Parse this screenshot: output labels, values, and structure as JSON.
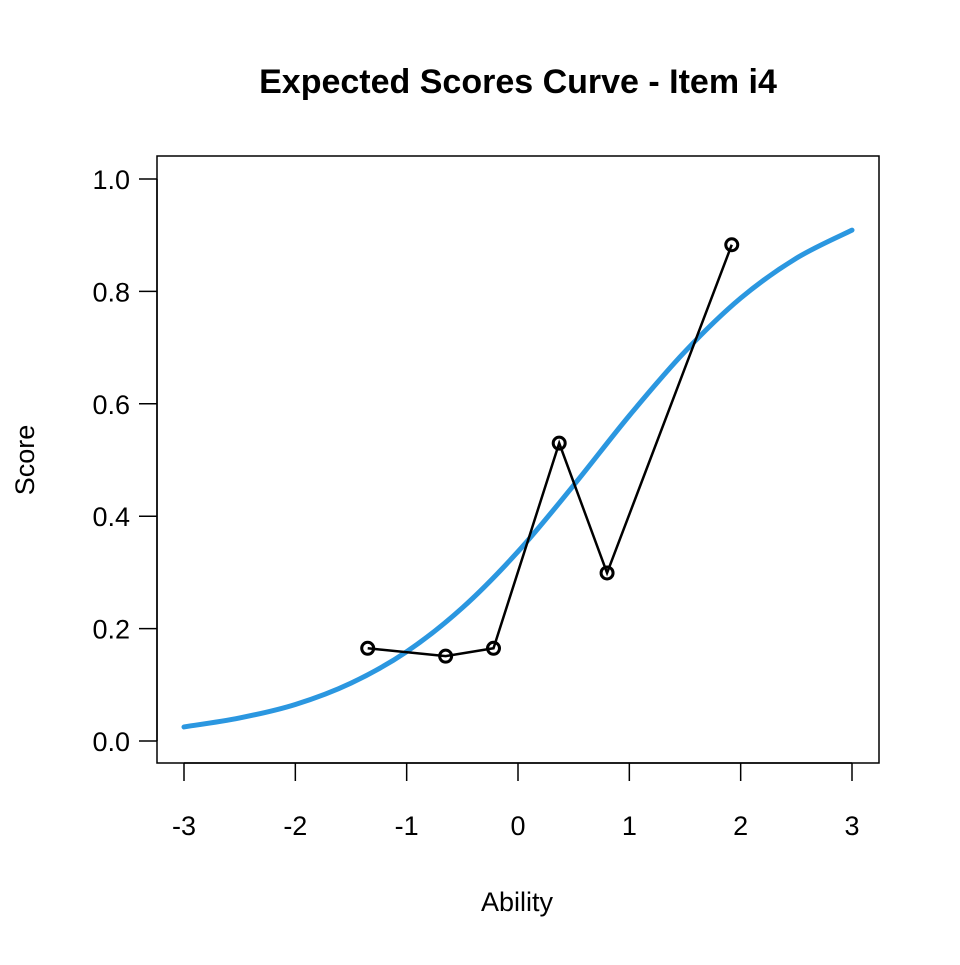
{
  "chart_data": {
    "type": "line",
    "title": "Expected Scores Curve - Item  i4",
    "xlabel": "Ability",
    "ylabel": "Score",
    "xlim": [
      -3,
      3
    ],
    "ylim": [
      0,
      1
    ],
    "x_ticks": [
      "-3",
      "-2",
      "-1",
      "0",
      "1",
      "2",
      "3"
    ],
    "y_ticks": [
      "0.0",
      "0.2",
      "0.4",
      "0.6",
      "0.8",
      "1.0"
    ],
    "grid": false,
    "series": [
      {
        "kind": "expected-curve",
        "color": "#2b97e0",
        "x": [
          -3,
          -2.5,
          -2,
          -1.5,
          -1,
          -0.5,
          0,
          0.5,
          1,
          1.5,
          2,
          2.5,
          3
        ],
        "y": [
          0.025,
          0.041,
          0.065,
          0.103,
          0.159,
          0.237,
          0.337,
          0.455,
          0.579,
          0.693,
          0.788,
          0.859,
          0.909
        ]
      },
      {
        "kind": "observed-points",
        "color": "#000000",
        "x": [
          -1.35,
          -0.65,
          -0.22,
          0.37,
          0.8,
          1.92
        ],
        "y": [
          0.165,
          0.151,
          0.165,
          0.53,
          0.299,
          0.883
        ]
      }
    ]
  }
}
